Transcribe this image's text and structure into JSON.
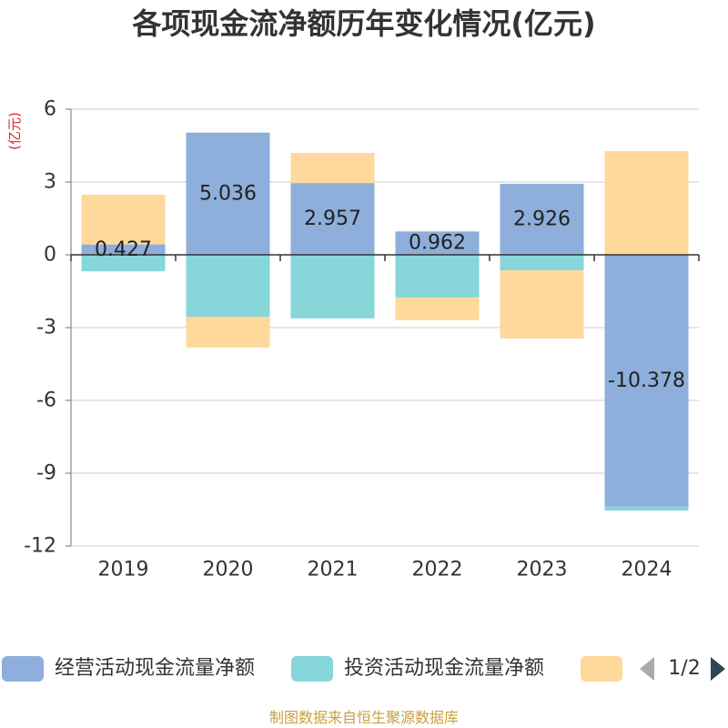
{
  "chart_data": {
    "type": "bar",
    "title": "各项现金流净额历年变化情况(亿元)",
    "ylabel": "(亿元)",
    "xlabel": "",
    "ylim": [
      -12,
      6
    ],
    "y_ticks": [
      "6",
      "3",
      "0",
      "-3",
      "-6",
      "-9",
      "-12"
    ],
    "y_tick_values": [
      6,
      3,
      0,
      -3,
      -6,
      -9,
      -12
    ],
    "categories": [
      "2019",
      "2020",
      "2021",
      "2022",
      "2023",
      "2024"
    ],
    "stacked": true,
    "series": [
      {
        "name": "经营活动现金流量净额",
        "color": "#8eaedb",
        "values": [
          0.427,
          5.036,
          2.957,
          0.962,
          2.926,
          -10.378
        ],
        "labels": [
          "0.427",
          "5.036",
          "2.957",
          "0.962",
          "2.926",
          "-10.378"
        ]
      },
      {
        "name": "投资活动现金流量净额",
        "color": "#87d6d9",
        "values": [
          -0.68,
          -2.55,
          -2.62,
          -1.76,
          -0.64,
          -0.16
        ]
      },
      {
        "name": "",
        "color": "#fed99b",
        "values": [
          2.05,
          -1.27,
          1.24,
          -0.94,
          -2.81,
          4.27
        ]
      }
    ]
  },
  "legend": {
    "items": [
      {
        "label": "经营活动现金流量净额",
        "color": "#8eaedb"
      },
      {
        "label": "投资活动现金流量净额",
        "color": "#87d6d9"
      },
      {
        "label": "",
        "color": "#fed99b"
      }
    ],
    "page": "1/2",
    "prev_color": "#aaaaaa",
    "next_color": "#2f4554"
  },
  "footer": {
    "source": "制图数据来自恒生聚源数据库"
  }
}
